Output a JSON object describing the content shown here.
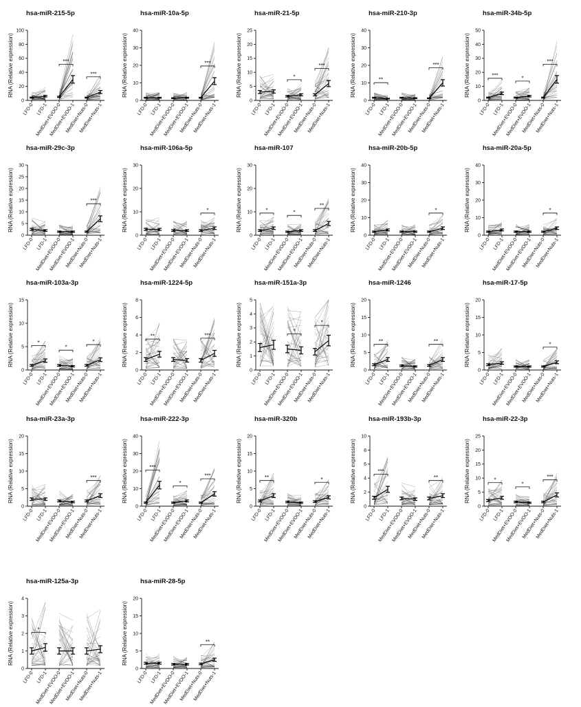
{
  "figure": {
    "y_axis_label": "RNA (Relative expression)",
    "categories": [
      "LFD-0",
      "LFD-1",
      "MedDiet+EVOO-0",
      "MedDiet+EVOO-1",
      "MedDiet+Nuts-0",
      "MedDiet+Nuts-1"
    ]
  },
  "chart_data": [
    {
      "type": "line",
      "title": "hsa-miR-215-5p",
      "ylabel": "RNA (Relative expression)",
      "ylim": [
        0,
        100
      ],
      "yticks": [
        0,
        20,
        40,
        60,
        80,
        100
      ],
      "categories": [
        "LFD-0",
        "LFD-1",
        "MedDiet+EVOO-0",
        "MedDiet+EVOO-1",
        "MedDiet+Nuts-0",
        "MedDiet+Nuts-1"
      ],
      "means": [
        4,
        6,
        5,
        30,
        4,
        12
      ],
      "significance": [
        {
          "pair": [
            2,
            3
          ],
          "label": "***"
        },
        {
          "pair": [
            4,
            5
          ],
          "label": "***"
        }
      ]
    },
    {
      "type": "line",
      "title": "hsa-miR-10a-5p",
      "ylabel": "RNA (Relative expression)",
      "ylim": [
        0,
        40
      ],
      "yticks": [
        0,
        10,
        20,
        30,
        40
      ],
      "categories": [
        "LFD-0",
        "LFD-1",
        "MedDiet+EVOO-0",
        "MedDiet+EVOO-1",
        "MedDiet+Nuts-0",
        "MedDiet+Nuts-1"
      ],
      "means": [
        1.5,
        1.5,
        1.3,
        1.5,
        1.5,
        11
      ],
      "significance": [
        {
          "pair": [
            4,
            5
          ],
          "label": "***"
        }
      ]
    },
    {
      "type": "line",
      "title": "hsa-miR-21-5p",
      "ylabel": "RNA (Relative expression)",
      "ylim": [
        0,
        25
      ],
      "yticks": [
        0,
        5,
        10,
        15,
        20,
        25
      ],
      "categories": [
        "LFD-0",
        "LFD-1",
        "MedDiet+EVOO-0",
        "MedDiet+EVOO-1",
        "MedDiet+Nuts-0",
        "MedDiet+Nuts-1"
      ],
      "means": [
        3,
        3.2,
        1.5,
        2,
        2,
        6
      ],
      "significance": [
        {
          "pair": [
            2,
            3
          ],
          "label": "*"
        },
        {
          "pair": [
            4,
            5
          ],
          "label": "***"
        }
      ]
    },
    {
      "type": "line",
      "title": "hsa-miR-210-3p",
      "ylabel": "RNA (Relative expression)",
      "ylim": [
        0,
        40
      ],
      "yticks": [
        0,
        10,
        20,
        30,
        40
      ],
      "categories": [
        "LFD-0",
        "LFD-1",
        "MedDiet+EVOO-0",
        "MedDiet+EVOO-1",
        "MedDiet+Nuts-0",
        "MedDiet+Nuts-1"
      ],
      "means": [
        1.5,
        1,
        1.5,
        1.3,
        1.2,
        10
      ],
      "significance": [
        {
          "pair": [
            0,
            1
          ],
          "label": "**"
        },
        {
          "pair": [
            4,
            5
          ],
          "label": "***"
        }
      ]
    },
    {
      "type": "line",
      "title": "hsa-miR-34b-5p",
      "ylabel": "RNA (Relative expression)",
      "ylim": [
        0,
        50
      ],
      "yticks": [
        0,
        10,
        20,
        30,
        40,
        50
      ],
      "categories": [
        "LFD-0",
        "LFD-1",
        "MedDiet+EVOO-0",
        "MedDiet+EVOO-1",
        "MedDiet+Nuts-0",
        "MedDiet+Nuts-1"
      ],
      "means": [
        2,
        5,
        2,
        3,
        2,
        15
      ],
      "significance": [
        {
          "pair": [
            0,
            1
          ],
          "label": "***"
        },
        {
          "pair": [
            2,
            3
          ],
          "label": "*"
        },
        {
          "pair": [
            4,
            5
          ],
          "label": "***"
        }
      ]
    },
    {
      "type": "line",
      "title": "hsa-miR-29c-3p",
      "ylabel": "RNA (Relative expression)",
      "ylim": [
        0,
        30
      ],
      "yticks": [
        0,
        5,
        10,
        15,
        20,
        25,
        30
      ],
      "categories": [
        "LFD-0",
        "LFD-1",
        "MedDiet+EVOO-0",
        "MedDiet+EVOO-1",
        "MedDiet+Nuts-0",
        "MedDiet+Nuts-1"
      ],
      "means": [
        2.5,
        2,
        1.5,
        1.5,
        1.5,
        7
      ],
      "significance": [
        {
          "pair": [
            4,
            5
          ],
          "label": "***"
        }
      ]
    },
    {
      "type": "line",
      "title": "hsa-miR-106a-5p",
      "ylabel": "RNA (Relative expression)",
      "ylim": [
        0,
        30
      ],
      "yticks": [
        0,
        10,
        20,
        30
      ],
      "categories": [
        "LFD-0",
        "LFD-1",
        "MedDiet+EVOO-0",
        "MedDiet+EVOO-1",
        "MedDiet+Nuts-0",
        "MedDiet+Nuts-1"
      ],
      "means": [
        2.5,
        2.5,
        2,
        2,
        2,
        3
      ],
      "significance": [
        {
          "pair": [
            4,
            5
          ],
          "label": "*"
        }
      ]
    },
    {
      "type": "line",
      "title": "hsa-miR-107",
      "ylabel": "RNA (Relative expression)",
      "ylim": [
        0,
        30
      ],
      "yticks": [
        0,
        10,
        20,
        30
      ],
      "categories": [
        "LFD-0",
        "LFD-1",
        "MedDiet+EVOO-0",
        "MedDiet+EVOO-1",
        "MedDiet+Nuts-0",
        "MedDiet+Nuts-1"
      ],
      "means": [
        2,
        3,
        1.5,
        2,
        2,
        5
      ],
      "significance": [
        {
          "pair": [
            0,
            1
          ],
          "label": "*"
        },
        {
          "pair": [
            2,
            3
          ],
          "label": "*"
        },
        {
          "pair": [
            4,
            5
          ],
          "label": "**"
        }
      ]
    },
    {
      "type": "line",
      "title": "hsa-miR-20b-5p",
      "ylabel": "RNA (Relative expression)",
      "ylim": [
        0,
        40
      ],
      "yticks": [
        0,
        10,
        20,
        30,
        40
      ],
      "categories": [
        "LFD-0",
        "LFD-1",
        "MedDiet+EVOO-0",
        "MedDiet+EVOO-1",
        "MedDiet+Nuts-0",
        "MedDiet+Nuts-1"
      ],
      "means": [
        2,
        3,
        2,
        2,
        2,
        4
      ],
      "significance": [
        {
          "pair": [
            4,
            5
          ],
          "label": "*"
        }
      ]
    },
    {
      "type": "line",
      "title": "hsa-miR-20a-5p",
      "ylabel": "RNA (Relative expression)",
      "ylim": [
        0,
        40
      ],
      "yticks": [
        0,
        10,
        20,
        30,
        40
      ],
      "categories": [
        "LFD-0",
        "LFD-1",
        "MedDiet+EVOO-0",
        "MedDiet+EVOO-1",
        "MedDiet+Nuts-0",
        "MedDiet+Nuts-1"
      ],
      "means": [
        2,
        3,
        2,
        2,
        2,
        4
      ],
      "significance": [
        {
          "pair": [
            4,
            5
          ],
          "label": "*"
        }
      ]
    },
    {
      "type": "line",
      "title": "hsa-miR-103a-3p",
      "ylabel": "RNA (Relative expression)",
      "ylim": [
        0,
        15
      ],
      "yticks": [
        0,
        5,
        10,
        15
      ],
      "categories": [
        "LFD-0",
        "LFD-1",
        "MedDiet+EVOO-0",
        "MedDiet+EVOO-1",
        "MedDiet+Nuts-0",
        "MedDiet+Nuts-1"
      ],
      "means": [
        1,
        2,
        1,
        0.8,
        1,
        2.2
      ],
      "significance": [
        {
          "pair": [
            0,
            1
          ],
          "label": "*"
        },
        {
          "pair": [
            2,
            3
          ],
          "label": "*"
        },
        {
          "pair": [
            4,
            5
          ],
          "label": "*"
        }
      ]
    },
    {
      "type": "line",
      "title": "hsa-miR-1224-5p",
      "ylabel": "RNA (Relative expression)",
      "ylim": [
        0,
        8
      ],
      "yticks": [
        0,
        2,
        4,
        6,
        8
      ],
      "categories": [
        "LFD-0",
        "LFD-1",
        "MedDiet+EVOO-0",
        "MedDiet+EVOO-1",
        "MedDiet+Nuts-0",
        "MedDiet+Nuts-1"
      ],
      "means": [
        1.2,
        1.8,
        1.2,
        1.1,
        1.1,
        1.9
      ],
      "significance": [
        {
          "pair": [
            0,
            1
          ],
          "label": "**"
        },
        {
          "pair": [
            4,
            5
          ],
          "label": "***"
        }
      ]
    },
    {
      "type": "line",
      "title": "hsa-miR-151a-3p",
      "ylabel": "RNA (Relative expression)",
      "ylim": [
        0,
        5
      ],
      "yticks": [
        0,
        1,
        2,
        3,
        4,
        5
      ],
      "categories": [
        "LFD-0",
        "LFD-1",
        "MedDiet+EVOO-0",
        "MedDiet+EVOO-1",
        "MedDiet+Nuts-0",
        "MedDiet+Nuts-1"
      ],
      "means": [
        1.6,
        1.8,
        1.5,
        1.4,
        1.3,
        2.1
      ],
      "significance": [
        {
          "pair": [
            2,
            3
          ],
          "label": "*"
        },
        {
          "pair": [
            4,
            5
          ],
          "label": "*"
        }
      ]
    },
    {
      "type": "line",
      "title": "hsa-miR-1246",
      "ylabel": "RNA (Relative expression)",
      "ylim": [
        0,
        20
      ],
      "yticks": [
        0,
        5,
        10,
        15,
        20
      ],
      "categories": [
        "LFD-0",
        "LFD-1",
        "MedDiet+EVOO-0",
        "MedDiet+EVOO-1",
        "MedDiet+Nuts-0",
        "MedDiet+Nuts-1"
      ],
      "means": [
        1.5,
        3,
        1.2,
        1,
        1.3,
        3
      ],
      "significance": [
        {
          "pair": [
            0,
            1
          ],
          "label": "**"
        },
        {
          "pair": [
            4,
            5
          ],
          "label": "**"
        }
      ]
    },
    {
      "type": "line",
      "title": "hsa-miR-17-5p",
      "ylabel": "RNA (Relative expression)",
      "ylim": [
        0,
        20
      ],
      "yticks": [
        0,
        5,
        10,
        15,
        20
      ],
      "categories": [
        "LFD-0",
        "LFD-1",
        "MedDiet+EVOO-0",
        "MedDiet+EVOO-1",
        "MedDiet+Nuts-0",
        "MedDiet+Nuts-1"
      ],
      "means": [
        1.5,
        2,
        1,
        1,
        1,
        2.2
      ],
      "significance": [
        {
          "pair": [
            4,
            5
          ],
          "label": "*"
        }
      ]
    },
    {
      "type": "line",
      "title": "hsa-miR-23a-3p",
      "ylabel": "RNA (Relative expression)",
      "ylim": [
        0,
        20
      ],
      "yticks": [
        0,
        5,
        10,
        15,
        20
      ],
      "categories": [
        "LFD-0",
        "LFD-1",
        "MedDiet+EVOO-0",
        "MedDiet+EVOO-1",
        "MedDiet+Nuts-0",
        "MedDiet+Nuts-1"
      ],
      "means": [
        2,
        2,
        1.5,
        1.2,
        1.5,
        3
      ],
      "significance": [
        {
          "pair": [
            4,
            5
          ],
          "label": "***"
        }
      ]
    },
    {
      "type": "line",
      "title": "hsa-miR-222-3p",
      "ylabel": "RNA (Relative expression)",
      "ylim": [
        0,
        40
      ],
      "yticks": [
        0,
        10,
        20,
        30,
        40
      ],
      "categories": [
        "LFD-0",
        "LFD-1",
        "MedDiet+EVOO-0",
        "MedDiet+EVOO-1",
        "MedDiet+Nuts-0",
        "MedDiet+Nuts-1"
      ],
      "means": [
        2,
        12,
        2,
        3,
        2,
        7
      ],
      "significance": [
        {
          "pair": [
            0,
            1
          ],
          "label": "***"
        },
        {
          "pair": [
            2,
            3
          ],
          "label": "*"
        },
        {
          "pair": [
            4,
            5
          ],
          "label": "***"
        }
      ]
    },
    {
      "type": "line",
      "title": "hsa-miR-320b",
      "ylabel": "RNA (Relative expression)",
      "ylim": [
        0,
        20
      ],
      "yticks": [
        0,
        5,
        10,
        15,
        20
      ],
      "categories": [
        "LFD-0",
        "LFD-1",
        "MedDiet+EVOO-0",
        "MedDiet+EVOO-1",
        "MedDiet+Nuts-0",
        "MedDiet+Nuts-1"
      ],
      "means": [
        1.5,
        3,
        1.2,
        1,
        1.3,
        2.5
      ],
      "significance": [
        {
          "pair": [
            0,
            1
          ],
          "label": "**"
        },
        {
          "pair": [
            4,
            5
          ],
          "label": "*"
        }
      ]
    },
    {
      "type": "line",
      "title": "hsa-miR-193b-3p",
      "ylabel": "RNA (Relative expression)",
      "ylim": [
        0,
        10
      ],
      "yticks": [
        0,
        2,
        4,
        6,
        8,
        10
      ],
      "categories": [
        "LFD-0",
        "LFD-1",
        "MedDiet+EVOO-0",
        "MedDiet+EVOO-1",
        "MedDiet+Nuts-0",
        "MedDiet+Nuts-1"
      ],
      "means": [
        1.2,
        2.4,
        1.1,
        1,
        1.1,
        1.5
      ],
      "significance": [
        {
          "pair": [
            0,
            1
          ],
          "label": "***"
        },
        {
          "pair": [
            4,
            5
          ],
          "label": "**"
        }
      ]
    },
    {
      "type": "line",
      "title": "hsa-miR-22-3p",
      "ylabel": "RNA (Relative expression)",
      "ylim": [
        0,
        25
      ],
      "yticks": [
        0,
        5,
        10,
        15,
        20,
        25
      ],
      "categories": [
        "LFD-0",
        "LFD-1",
        "MedDiet+EVOO-0",
        "MedDiet+EVOO-1",
        "MedDiet+Nuts-0",
        "MedDiet+Nuts-1"
      ],
      "means": [
        2,
        3,
        1.5,
        1.2,
        1.5,
        4
      ],
      "significance": [
        {
          "pair": [
            0,
            1
          ],
          "label": "*"
        },
        {
          "pair": [
            2,
            3
          ],
          "label": "*"
        },
        {
          "pair": [
            4,
            5
          ],
          "label": "***"
        }
      ]
    },
    {
      "type": "line",
      "title": "hsa-miR-125a-3p",
      "ylabel": "RNA (Relative expression)",
      "ylim": [
        0,
        4
      ],
      "yticks": [
        0,
        1,
        2,
        3,
        4
      ],
      "categories": [
        "LFD-0",
        "LFD-1",
        "MedDiet+EVOO-0",
        "MedDiet+EVOO-1",
        "MedDiet+Nuts-0",
        "MedDiet+Nuts-1"
      ],
      "means": [
        1,
        1.2,
        1,
        1,
        1,
        1.1
      ],
      "significance": [
        {
          "pair": [
            0,
            1
          ],
          "label": "*"
        }
      ]
    },
    {
      "type": "line",
      "title": "hsa-miR-28-5p",
      "ylabel": "RNA (Relative expression)",
      "ylim": [
        0,
        20
      ],
      "yticks": [
        0,
        5,
        10,
        15,
        20
      ],
      "categories": [
        "LFD-0",
        "LFD-1",
        "MedDiet+EVOO-0",
        "MedDiet+EVOO-1",
        "MedDiet+Nuts-0",
        "MedDiet+Nuts-1"
      ],
      "means": [
        1.5,
        1.5,
        1.2,
        1.2,
        1.3,
        2.5
      ],
      "significance": [
        {
          "pair": [
            4,
            5
          ],
          "label": "**"
        }
      ]
    }
  ]
}
